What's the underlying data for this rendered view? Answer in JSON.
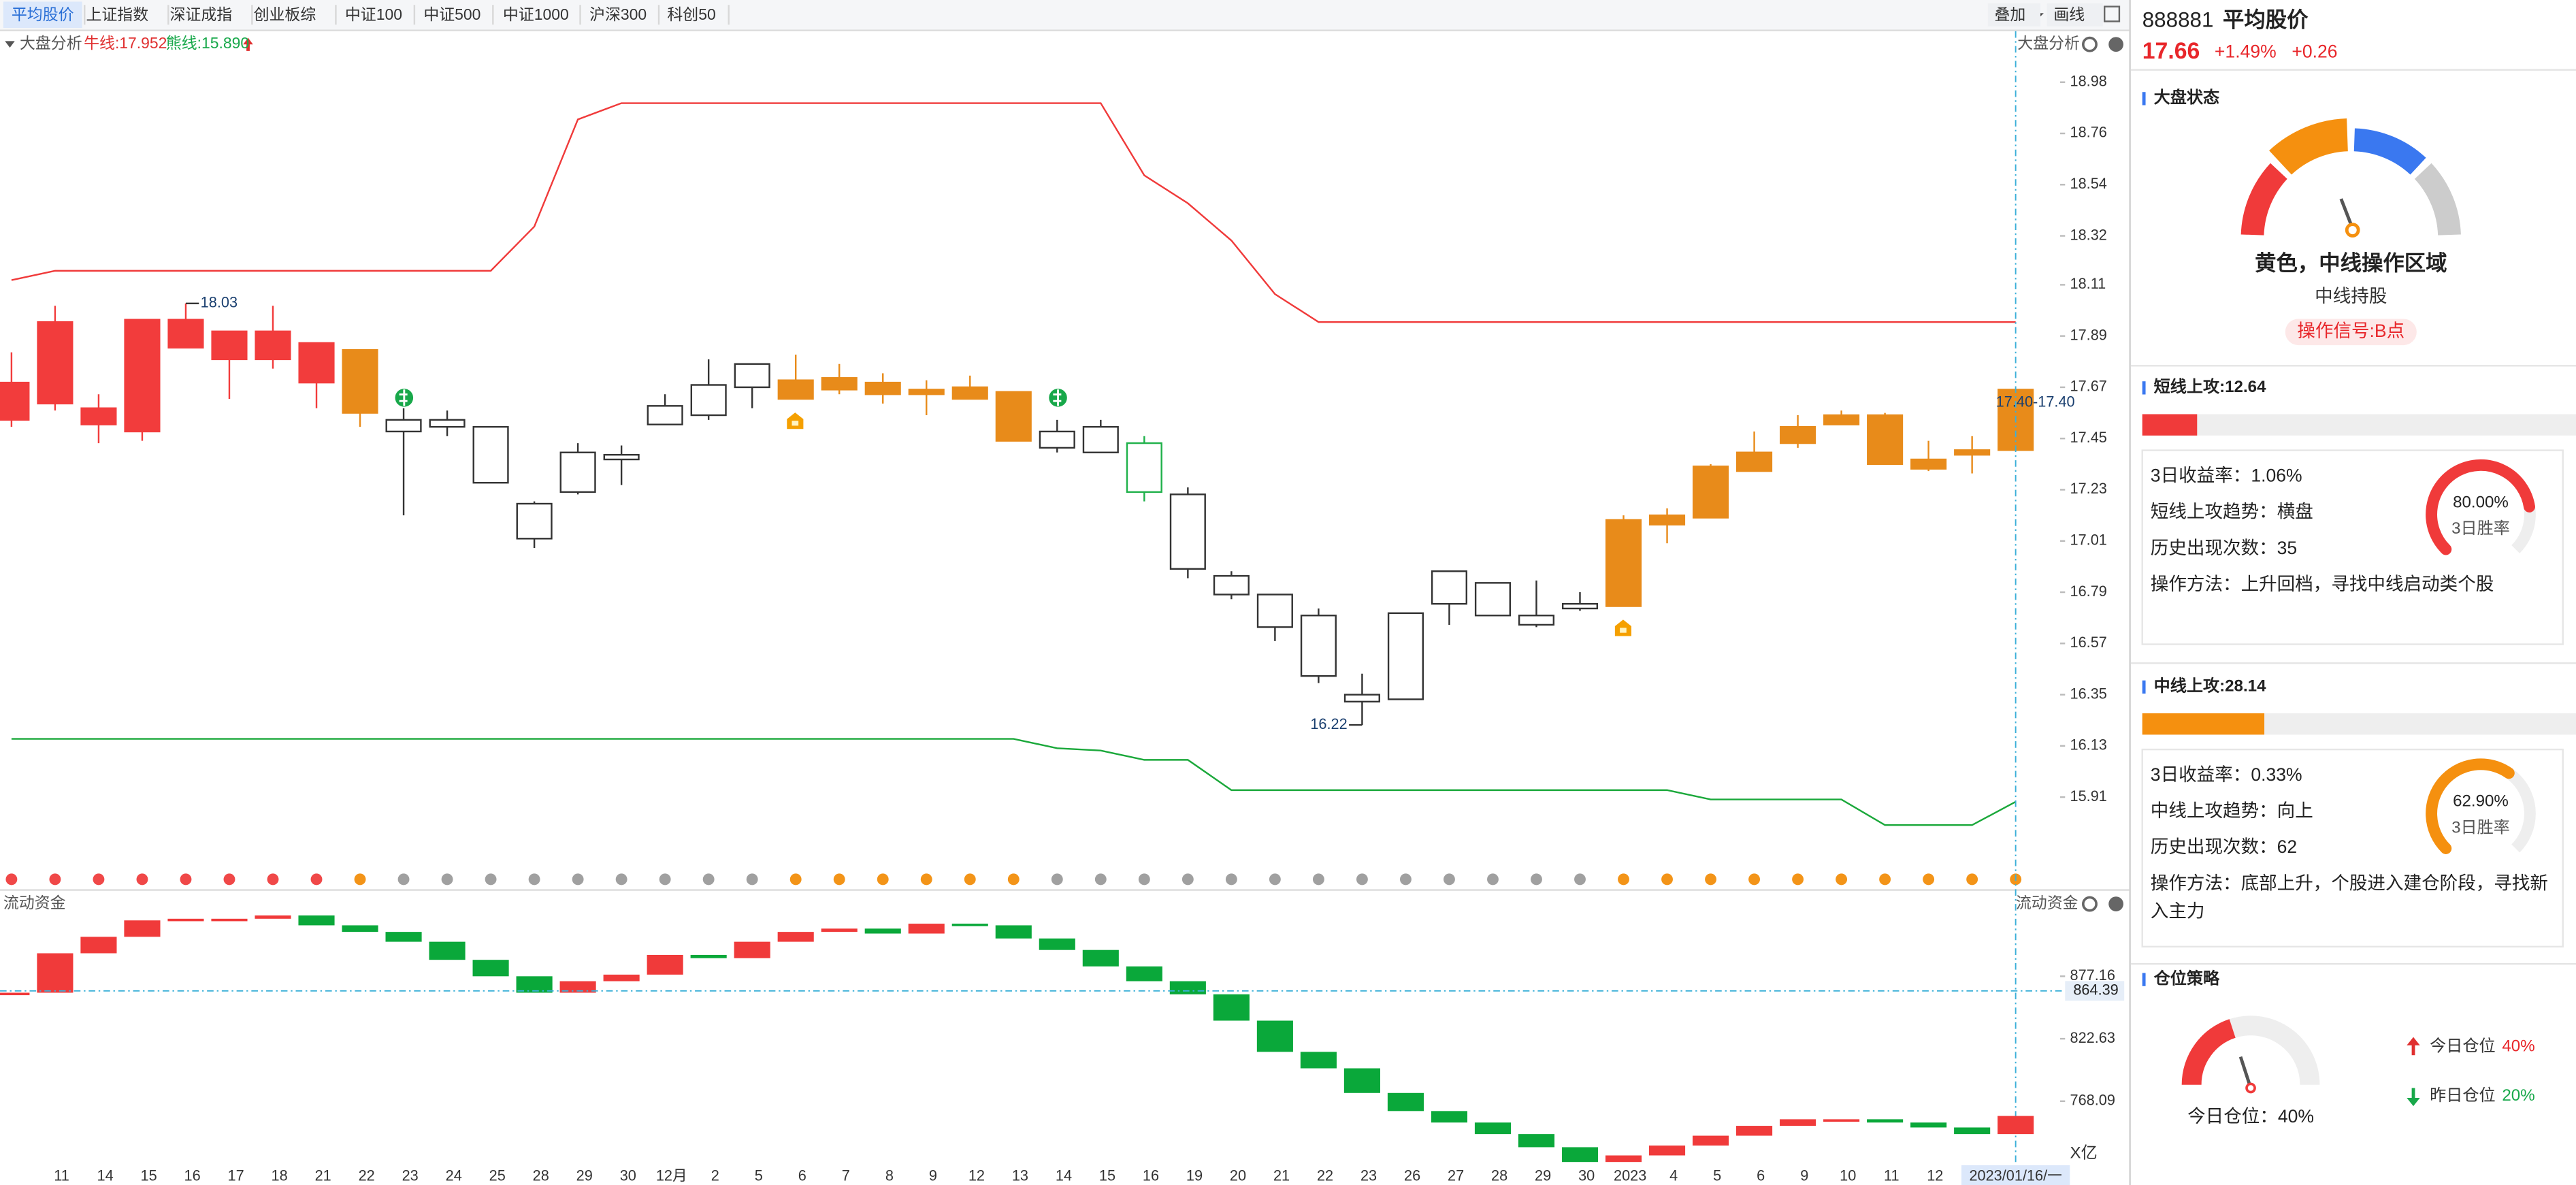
{
  "tabs": [
    "平均股价",
    "上证指数",
    "深证成指",
    "创业板综",
    "中证100",
    "中证500",
    "中证1000",
    "沪深300",
    "科创50"
  ],
  "toolbar": [
    "叠加",
    "画线"
  ],
  "chart_data": {
    "type": "candlestick",
    "title": "大盘分析",
    "bull_label": "牛线:17.952",
    "bear_label": "熊线:15.890",
    "categories": [
      null,
      "11",
      "14",
      "15",
      "16",
      "17",
      "18",
      "21",
      "22",
      "23",
      "24",
      "25",
      "28",
      "29",
      "30",
      "12月",
      "2",
      "5",
      "6",
      "7",
      "8",
      "9",
      "12",
      "13",
      "14",
      "15",
      "16",
      "19",
      "20",
      "21",
      "22",
      "23",
      "26",
      "27",
      "28",
      "29",
      "30",
      "2023",
      "4",
      "5",
      "6",
      "9",
      "10",
      "11",
      "12",
      null,
      "2023/01/16/一"
    ],
    "open": [
      17.53,
      17.6,
      17.51,
      17.48,
      17.84,
      17.79,
      17.79,
      17.69,
      17.56,
      17.48,
      17.5,
      17.26,
      17.02,
      17.22,
      17.36,
      17.51,
      17.55,
      17.67,
      17.62,
      17.66,
      17.64,
      17.64,
      17.62,
      17.44,
      17.41,
      17.39,
      17.22,
      16.89,
      16.78,
      16.64,
      16.43,
      16.32,
      16.33,
      16.74,
      16.69,
      16.65,
      16.72,
      16.73,
      17.08,
      17.11,
      17.31,
      17.43,
      17.51,
      17.34,
      17.32,
      17.38,
      17.4
    ],
    "close": [
      17.69,
      17.95,
      17.58,
      17.96,
      17.96,
      17.91,
      17.91,
      17.86,
      17.83,
      17.53,
      17.53,
      17.5,
      17.17,
      17.39,
      17.38,
      17.59,
      17.68,
      17.77,
      17.7,
      17.71,
      17.69,
      17.66,
      17.67,
      17.65,
      17.48,
      17.5,
      17.43,
      17.21,
      16.86,
      16.78,
      16.69,
      16.35,
      16.7,
      16.88,
      16.83,
      16.69,
      16.74,
      17.1,
      17.12,
      17.33,
      17.39,
      17.5,
      17.55,
      17.55,
      17.36,
      17.4,
      17.66
    ],
    "high": [
      17.82,
      18.02,
      17.64,
      17.96,
      18.03,
      17.91,
      18.02,
      17.86,
      17.83,
      17.58,
      17.57,
      17.5,
      17.18,
      17.43,
      17.42,
      17.64,
      17.79,
      17.77,
      17.81,
      17.77,
      17.73,
      17.7,
      17.72,
      17.65,
      17.53,
      17.53,
      17.46,
      17.24,
      16.88,
      16.78,
      16.72,
      16.44,
      16.7,
      16.88,
      16.83,
      16.84,
      16.79,
      17.12,
      17.15,
      17.34,
      17.48,
      17.55,
      17.57,
      17.56,
      17.44,
      17.46,
      17.66
    ],
    "low": [
      17.5,
      17.57,
      17.43,
      17.44,
      17.84,
      17.62,
      17.75,
      17.58,
      17.5,
      17.12,
      17.46,
      17.26,
      16.98,
      17.21,
      17.25,
      17.51,
      17.53,
      17.58,
      17.62,
      17.64,
      17.6,
      17.55,
      17.62,
      17.44,
      17.39,
      17.39,
      17.18,
      16.85,
      16.76,
      16.58,
      16.4,
      16.22,
      16.33,
      16.65,
      16.69,
      16.64,
      16.71,
      16.73,
      17.0,
      17.11,
      17.31,
      17.41,
      17.51,
      17.34,
      17.31,
      17.3,
      17.4
    ],
    "fills": [
      "#f23c3c",
      "#f23c3c",
      "#f23c3c",
      "#f23c3c",
      "#f23c3c",
      "#f23c3c",
      "#f23c3c",
      "#f23c3c",
      "#e88b1a",
      "#ffffff",
      "#ffffff",
      "#ffffff",
      "#ffffff",
      "#ffffff",
      "#ffffff",
      "#ffffff",
      "#ffffff",
      "#ffffff",
      "#e88b1a",
      "#e88b1a",
      "#e88b1a",
      "#e88b1a",
      "#e88b1a",
      "#e88b1a",
      "#ffffff",
      "#ffffff",
      "#ffffff",
      "#ffffff",
      "#ffffff",
      "#ffffff",
      "#ffffff",
      "#ffffff",
      "#ffffff",
      "#ffffff",
      "#ffffff",
      "#ffffff",
      "#ffffff",
      "#e88b1a",
      "#e88b1a",
      "#e88b1a",
      "#e88b1a",
      "#e88b1a",
      "#e88b1a",
      "#e88b1a",
      "#e88b1a",
      "#e88b1a",
      "#e88b1a"
    ],
    "strokes": [
      "#f23c3c",
      "#f23c3c",
      "#f23c3c",
      "#f23c3c",
      "#f23c3c",
      "#f23c3c",
      "#f23c3c",
      "#f23c3c",
      "#e88b1a",
      "#333333",
      "#333333",
      "#333333",
      "#333333",
      "#333333",
      "#333333",
      "#333333",
      "#333333",
      "#333333",
      "#e88b1a",
      "#e88b1a",
      "#e88b1a",
      "#e88b1a",
      "#e88b1a",
      "#e88b1a",
      "#333333",
      "#333333",
      "#1fb14a",
      "#333333",
      "#333333",
      "#333333",
      "#333333",
      "#333333",
      "#333333",
      "#333333",
      "#333333",
      "#333333",
      "#333333",
      "#e88b1a",
      "#e88b1a",
      "#e88b1a",
      "#e88b1a",
      "#e88b1a",
      "#e88b1a",
      "#e88b1a",
      "#e88b1a",
      "#e88b1a",
      "#e88b1a"
    ],
    "dot_colors": [
      "#f04848",
      "#f04848",
      "#f04848",
      "#f04848",
      "#f04848",
      "#f04848",
      "#f04848",
      "#f04848",
      "#f39418",
      "#a0a0a0",
      "#a0a0a0",
      "#a0a0a0",
      "#a0a0a0",
      "#a0a0a0",
      "#a0a0a0",
      "#a0a0a0",
      "#a0a0a0",
      "#a0a0a0",
      "#f39418",
      "#f39418",
      "#f39418",
      "#f39418",
      "#f39418",
      "#f39418",
      "#a0a0a0",
      "#a0a0a0",
      "#a0a0a0",
      "#a0a0a0",
      "#a0a0a0",
      "#a0a0a0",
      "#a0a0a0",
      "#a0a0a0",
      "#a0a0a0",
      "#a0a0a0",
      "#a0a0a0",
      "#a0a0a0",
      "#a0a0a0",
      "#f39418",
      "#f39418",
      "#f39418",
      "#f39418",
      "#f39418",
      "#f39418",
      "#f39418",
      "#f39418",
      "#f39418",
      "#f39418"
    ],
    "bull_line": [
      18.13,
      18.17,
      18.17,
      18.17,
      18.17,
      18.17,
      18.17,
      18.17,
      18.17,
      18.17,
      18.17,
      18.17,
      18.36,
      18.82,
      18.89,
      18.89,
      18.89,
      18.89,
      18.89,
      18.89,
      18.89,
      18.89,
      18.89,
      18.89,
      18.89,
      18.89,
      18.58,
      18.46,
      18.3,
      18.07,
      17.95,
      17.95,
      17.95,
      17.95,
      17.95,
      17.95,
      17.95,
      17.95,
      17.95,
      17.95,
      17.95,
      17.95,
      17.95,
      17.95,
      17.95,
      17.95,
      17.95
    ],
    "bear_line": [
      16.16,
      16.16,
      16.16,
      16.16,
      16.16,
      16.16,
      16.16,
      16.16,
      16.16,
      16.16,
      16.16,
      16.16,
      16.16,
      16.16,
      16.16,
      16.16,
      16.16,
      16.16,
      16.16,
      16.16,
      16.16,
      16.16,
      16.16,
      16.16,
      16.12,
      16.11,
      16.07,
      16.07,
      15.94,
      15.94,
      15.94,
      15.94,
      15.94,
      15.94,
      15.94,
      15.94,
      15.94,
      15.94,
      15.94,
      15.9,
      15.9,
      15.9,
      15.9,
      15.79,
      15.79,
      15.79,
      15.89
    ],
    "bull_color": "#f03a3a",
    "bear_color": "#1aa83a",
    "ylim": [
      15.91,
      18.98
    ],
    "yticks": [
      18.98,
      18.76,
      18.54,
      18.32,
      18.11,
      17.89,
      17.67,
      17.45,
      17.23,
      17.01,
      16.79,
      16.57,
      16.35,
      16.13,
      15.91
    ],
    "crosshair_label": "17.40-17.40"
  },
  "flow": {
    "title": "流动资金",
    "values": [
      862.81,
      897.25,
      911.6,
      925.95,
      927.39,
      927.39,
      930.26,
      921.65,
      915.91,
      907.3,
      891.51,
      877.16,
      862.81,
      872.86,
      878.6,
      895.82,
      892.95,
      907.3,
      915.91,
      918.78,
      914.47,
      923.08,
      921.65,
      910.17,
      900.12,
      885.77,
      872.86,
      861.37,
      838.42,
      811.15,
      796.8,
      775.27,
      759.49,
      749.45,
      739.4,
      727.92,
      715.01,
      720.75,
      729.36,
      737.97,
      746.58,
      752.32,
      752.32,
      749.45,
      745.15,
      739.4,
      755.19
    ],
    "ylim": [
      713.57,
      931.69
    ],
    "yticks": [
      877.16,
      822.63,
      768.09
    ],
    "unit": "X亿",
    "cursor_value": 864.39,
    "up_color": "#f03a3a",
    "down_color": "#0aa83a"
  },
  "panel": {
    "code": "888881",
    "name": "平均股价",
    "price": "17.66",
    "change_pct": "+1.49%",
    "change": "+0.26",
    "status": {
      "title": "大盘状态",
      "text": "黄色，中线操作区域",
      "advice": "中线持股",
      "signal": "操作信号:B点"
    },
    "cards": [
      {
        "label": "短线上攻:",
        "score": 12.64,
        "color": "#f03a3a",
        "rows": [
          "3日收益率：1.06%",
          "短线上攻趋势：横盘",
          "历史出现次数：35",
          "操作方法：上升回档，寻找中线启动类个股"
        ],
        "win_rate": 80,
        "win_rate_label": "80.00%",
        "win_caption": "3日胜率"
      },
      {
        "label": "中线上攻:",
        "score": 28.14,
        "color": "#f5900f",
        "rows": [
          "3日收益率：0.33%",
          "中线上攻趋势：向上",
          "历史出现次数：62",
          "操作方法：底部上升，个股进入建仓阶段，寻找新入主力"
        ],
        "win_rate": 62.9,
        "win_rate_label": "62.90%",
        "win_caption": "3日胜率"
      }
    ],
    "position": {
      "title": "仓位策略",
      "caption": "今日仓位：40%",
      "today_label": "今日仓位",
      "today": 40,
      "today_value_label": "40%",
      "yesterday_label": "昨日仓位",
      "yesterday": 20,
      "yesterday_value_label": "20%"
    }
  }
}
